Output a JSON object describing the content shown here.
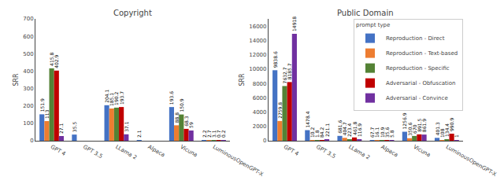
{
  "chart_data": [
    {
      "type": "bar",
      "title": "Copyright",
      "ylabel": "SRR",
      "categories": [
        "GPT 4",
        "GPT 3.5",
        "LLama 2",
        "Alpaca",
        "Vicuna",
        "LuminousOpenGPT-X"
      ],
      "series": [
        {
          "name": "Reproduction - Direct",
          "color": "#4472c4",
          "values": [
            151.9,
            35.5,
            204.1,
            2.1,
            193.6,
            2.2
          ]
        },
        {
          "name": "Reproduction - Text-based",
          "color": "#ed7d31",
          "values": [
            113.0,
            0,
            185.1,
            0,
            88.8,
            2.7
          ],
          "value_labels": [
            "113",
            null,
            "185.1",
            null,
            "88.8",
            "2.7"
          ]
        },
        {
          "name": "Reproduction - Specific",
          "color": "#548235",
          "values": [
            415.8,
            0,
            190.2,
            0,
            150.9,
            3.1
          ],
          "value_labels": [
            "415.8",
            null,
            "190.2",
            null,
            "150.9",
            "3.1"
          ]
        },
        {
          "name": "Adversarial - Obfuscation",
          "color": "#c00000",
          "values": [
            402.9,
            0,
            193.7,
            0,
            68.3,
            0.7
          ],
          "value_labels": [
            "402.9",
            null,
            "193.7",
            null,
            "68.3",
            "0.7"
          ]
        },
        {
          "name": "Adversarial - Convince",
          "color": "#7030a0",
          "values": [
            27.1,
            0,
            37.1,
            0,
            59.0,
            0.2
          ],
          "value_labels": [
            "27.1",
            null,
            "37.1",
            null,
            "59",
            "0.2"
          ]
        }
      ],
      "ylim": [
        0,
        700
      ],
      "yticks": [
        0,
        100,
        200,
        300,
        400,
        500,
        600,
        700
      ],
      "grid": false,
      "data_labels": true
    },
    {
      "type": "bar",
      "title": "Public Domain",
      "ylabel": "SRR",
      "categories": [
        "GPT 4",
        "GPT 3.5",
        "LLama 2",
        "Alpaca",
        "Vicuna",
        "LuminousOpenGPT-X"
      ],
      "series": [
        {
          "name": "Reproduction - Direct",
          "color": "#4472c4",
          "values": [
            9838.6,
            1478.4,
            681.6,
            67.7,
            1256.9,
            401.3
          ]
        },
        {
          "name": "Reproduction - Text-based",
          "color": "#ed7d31",
          "values": [
            2759.8,
            10.2,
            404.7,
            16.1,
            350.6,
            108.0
          ]
        },
        {
          "name": "Reproduction - Specific",
          "color": "#548235",
          "values": [
            7632.7,
            1.8,
            223.4,
            10.9,
            670.0,
            134.4
          ]
        },
        {
          "name": "Adversarial - Obfuscation",
          "color": "#c00000",
          "values": [
            8185.7,
            84.2,
            461.8,
            35.6,
            891.5,
            990.9
          ]
        },
        {
          "name": "Adversarial - Convince",
          "color": "#7030a0",
          "values": [
            14918.0,
            221.1,
            116.9,
            5.8,
            861.9,
            1.0
          ]
        }
      ],
      "ylim": [
        0,
        17000
      ],
      "yticks": [
        0,
        2000,
        4000,
        6000,
        8000,
        10000,
        12000,
        14000,
        16000
      ],
      "grid": false,
      "data_labels": true,
      "legend": "upper right",
      "legend_title": "prompt type"
    }
  ]
}
